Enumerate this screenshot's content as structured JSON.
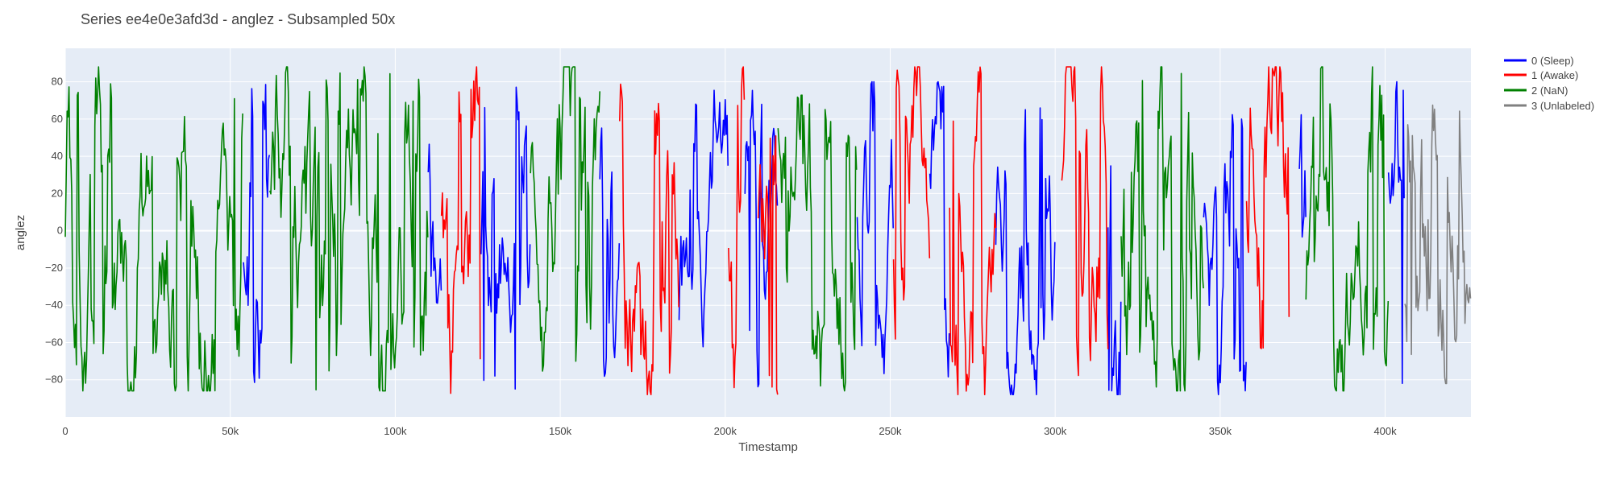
{
  "chart_data": {
    "type": "line",
    "title": "Series ee4e0e3afd3d - anglez - Subsampled 50x",
    "xlabel": "Timestamp",
    "ylabel": "anglez",
    "xlim": [
      0,
      426000
    ],
    "ylim": [
      -100,
      98
    ],
    "x_ticks": [
      0,
      50000,
      100000,
      150000,
      200000,
      250000,
      300000,
      350000,
      400000
    ],
    "x_tick_labels": [
      "0",
      "50k",
      "100k",
      "150k",
      "200k",
      "250k",
      "300k",
      "350k",
      "400k"
    ],
    "y_ticks": [
      -80,
      -60,
      -40,
      -20,
      0,
      20,
      40,
      60,
      80
    ],
    "y_tick_labels": [
      "−80",
      "−60",
      "−40",
      "−20",
      "0",
      "20",
      "40",
      "60",
      "80"
    ],
    "grid": true,
    "legend_position": "top-right",
    "series": [
      {
        "name": "0 (Sleep)",
        "color": "#0000ff",
        "segments": [
          [
            54000,
            62000
          ],
          [
            110000,
            114000
          ],
          [
            126000,
            141000
          ],
          [
            162000,
            168000
          ],
          [
            186000,
            201000
          ],
          [
            206000,
            216000
          ],
          [
            240000,
            251000
          ],
          [
            262000,
            268000
          ],
          [
            282000,
            300000
          ],
          [
            316000,
            320000
          ],
          [
            345000,
            358000
          ],
          [
            374000,
            376000
          ],
          [
            401000,
            406000
          ]
        ],
        "sample_range": [
          -88,
          80
        ]
      },
      {
        "name": "1 (Awake)",
        "color": "#ff0000",
        "segments": [
          [
            114000,
            126000
          ],
          [
            168000,
            186000
          ],
          [
            201000,
            206000
          ],
          [
            210000,
            216000
          ],
          [
            251000,
            262000
          ],
          [
            268000,
            282000
          ],
          [
            302000,
            316000
          ],
          [
            358000,
            371000
          ]
        ],
        "sample_range": [
          -88,
          88
        ]
      },
      {
        "name": "2 (NaN)",
        "color": "#008000",
        "segments": [
          [
            0,
            54000
          ],
          [
            62000,
            110000
          ],
          [
            141000,
            162000
          ],
          [
            216000,
            240000
          ],
          [
            320000,
            345000
          ],
          [
            376000,
            401000
          ]
        ],
        "sample_range": [
          -86,
          88
        ]
      },
      {
        "name": "3 (Unlabeled)",
        "color": "#808080",
        "segments": [
          [
            406000,
            426000
          ]
        ],
        "sample_range": [
          -82,
          72
        ]
      }
    ]
  },
  "style": {
    "plot_background": "#e5ecf6",
    "grid_color": "#ffffff",
    "text_color": "#444444"
  }
}
